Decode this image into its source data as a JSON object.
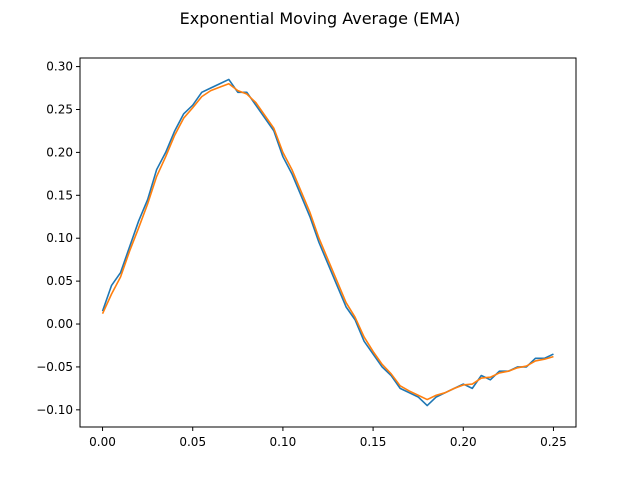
{
  "chart_data": {
    "type": "line",
    "title": "Exponential Moving Average (EMA)",
    "xlabel": "",
    "ylabel": "",
    "xlim": [
      -0.0125,
      0.2625
    ],
    "ylim": [
      -0.12,
      0.31
    ],
    "x_ticks": [
      0.0,
      0.05,
      0.1,
      0.15,
      0.2,
      0.25
    ],
    "x_tick_labels": [
      "0.00",
      "0.05",
      "0.10",
      "0.15",
      "0.20",
      "0.25"
    ],
    "y_ticks": [
      -0.1,
      -0.05,
      0.0,
      0.05,
      0.1,
      0.15,
      0.2,
      0.25,
      0.3
    ],
    "y_tick_labels": [
      "−0.10",
      "−0.05",
      "0.00",
      "0.05",
      "0.10",
      "0.15",
      "0.20",
      "0.25",
      "0.30"
    ],
    "grid": false,
    "legend": "none",
    "series": [
      {
        "color": "#1f77b4",
        "x": [
          0.0,
          0.005,
          0.01,
          0.015,
          0.02,
          0.025,
          0.03,
          0.035,
          0.04,
          0.045,
          0.05,
          0.055,
          0.06,
          0.065,
          0.07,
          0.075,
          0.08,
          0.085,
          0.09,
          0.095,
          0.1,
          0.105,
          0.11,
          0.115,
          0.12,
          0.125,
          0.13,
          0.135,
          0.14,
          0.145,
          0.15,
          0.155,
          0.16,
          0.165,
          0.17,
          0.175,
          0.18,
          0.185,
          0.19,
          0.195,
          0.2,
          0.205,
          0.21,
          0.215,
          0.22,
          0.225,
          0.23,
          0.235,
          0.24,
          0.245,
          0.25
        ],
        "y": [
          0.015,
          0.045,
          0.06,
          0.09,
          0.12,
          0.145,
          0.18,
          0.2,
          0.225,
          0.245,
          0.255,
          0.27,
          0.275,
          0.28,
          0.285,
          0.27,
          0.27,
          0.255,
          0.24,
          0.225,
          0.195,
          0.175,
          0.15,
          0.125,
          0.095,
          0.07,
          0.045,
          0.02,
          0.005,
          -0.02,
          -0.035,
          -0.05,
          -0.06,
          -0.075,
          -0.08,
          -0.085,
          -0.095,
          -0.085,
          -0.08,
          -0.075,
          -0.07,
          -0.075,
          -0.06,
          -0.065,
          -0.055,
          -0.055,
          -0.05,
          -0.05,
          -0.04,
          -0.04,
          -0.035
        ]
      },
      {
        "color": "#ff7f0e",
        "x": [
          0.0,
          0.005,
          0.01,
          0.015,
          0.02,
          0.025,
          0.03,
          0.035,
          0.04,
          0.045,
          0.05,
          0.055,
          0.06,
          0.065,
          0.07,
          0.075,
          0.08,
          0.085,
          0.09,
          0.095,
          0.1,
          0.105,
          0.11,
          0.115,
          0.12,
          0.125,
          0.13,
          0.135,
          0.14,
          0.145,
          0.15,
          0.155,
          0.16,
          0.165,
          0.17,
          0.175,
          0.18,
          0.185,
          0.19,
          0.195,
          0.2,
          0.205,
          0.21,
          0.215,
          0.22,
          0.225,
          0.23,
          0.235,
          0.24,
          0.245,
          0.25
        ],
        "y": [
          0.012,
          0.035,
          0.055,
          0.085,
          0.112,
          0.14,
          0.172,
          0.195,
          0.22,
          0.24,
          0.252,
          0.265,
          0.272,
          0.276,
          0.28,
          0.272,
          0.268,
          0.258,
          0.243,
          0.228,
          0.2,
          0.18,
          0.155,
          0.13,
          0.1,
          0.075,
          0.05,
          0.025,
          0.008,
          -0.015,
          -0.032,
          -0.047,
          -0.058,
          -0.072,
          -0.078,
          -0.083,
          -0.088,
          -0.083,
          -0.08,
          -0.075,
          -0.071,
          -0.07,
          -0.063,
          -0.062,
          -0.057,
          -0.055,
          -0.051,
          -0.049,
          -0.043,
          -0.041,
          -0.038
        ]
      }
    ]
  }
}
